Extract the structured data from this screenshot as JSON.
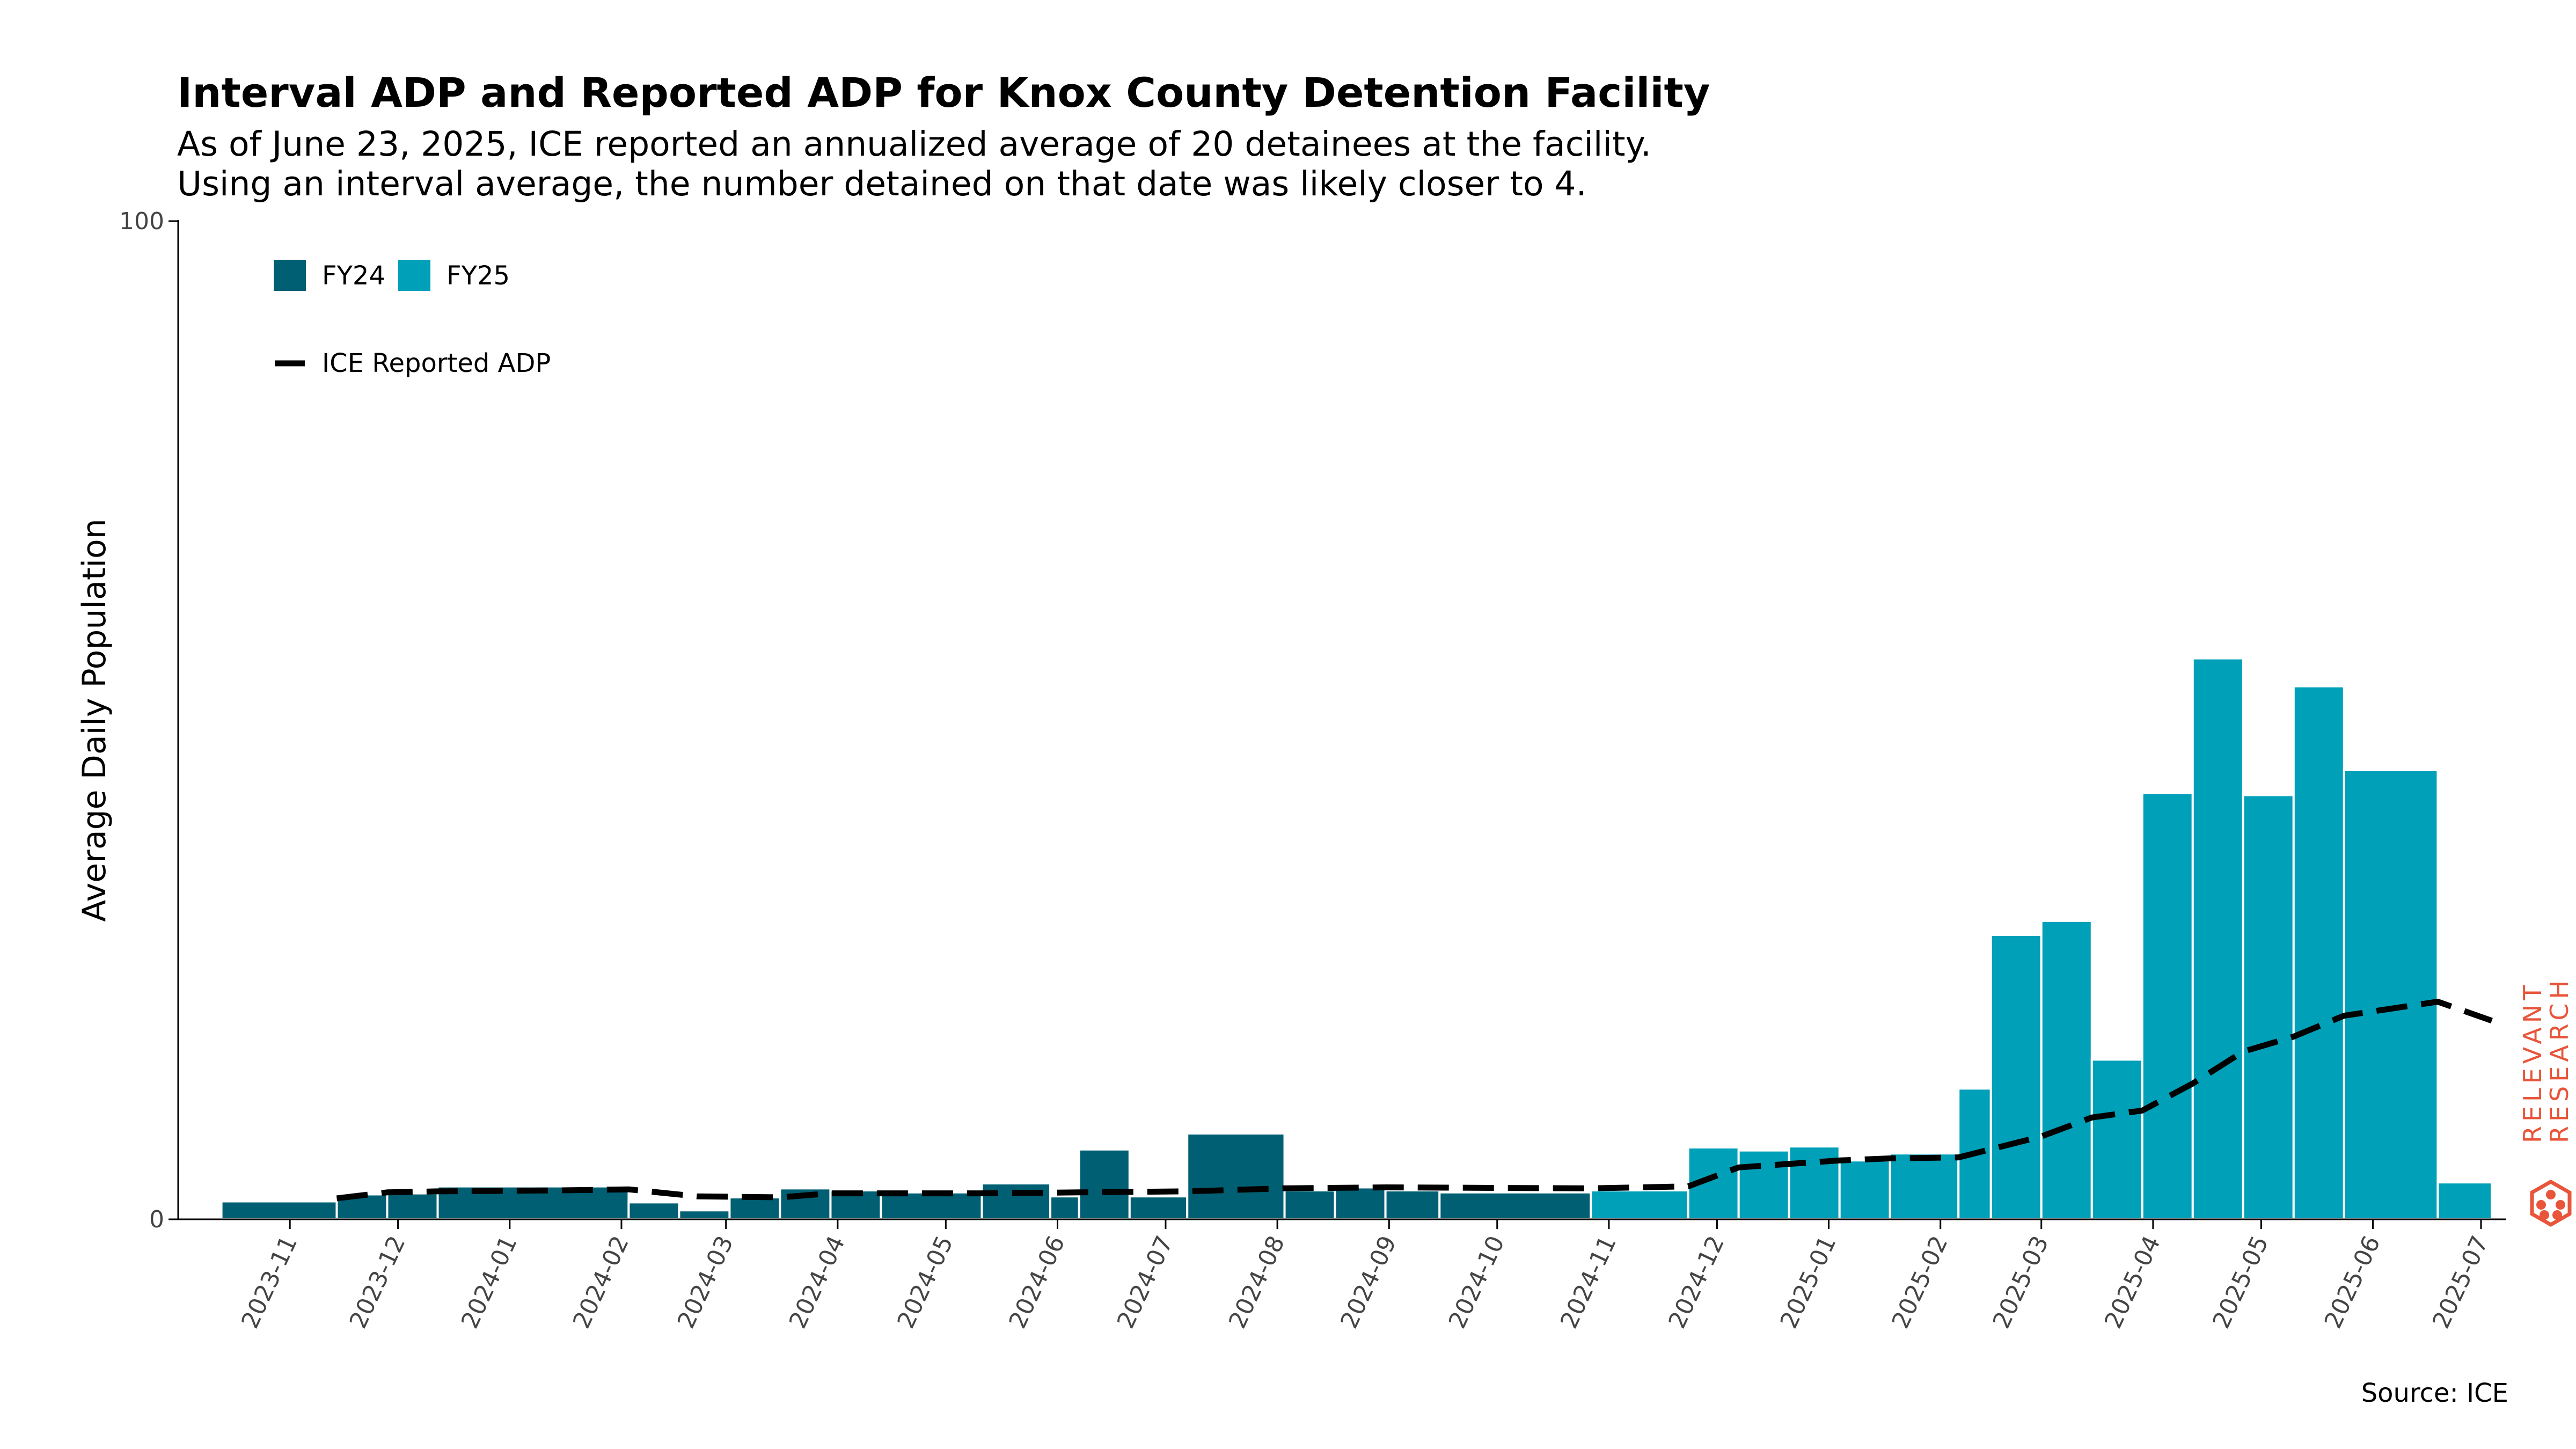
{
  "chart_data": {
    "type": "bar",
    "title": "Interval ADP and Reported ADP for Knox County Detention Facility",
    "subtitle": [
      "As of June 23, 2025, ICE reported an annualized average of 20 detainees at the facility.",
      "Using an interval average, the number detained on that date was likely closer to 4."
    ],
    "ylabel": "Average Daily Population",
    "xlabel": "",
    "ylim": [
      0,
      100
    ],
    "y_ticks": [
      "0",
      "100"
    ],
    "x_ticks": [
      "2023-11",
      "2023-12",
      "2024-01",
      "2024-02",
      "2024-03",
      "2024-04",
      "2024-05",
      "2024-06",
      "2024-07",
      "2024-08",
      "2024-09",
      "2024-10",
      "2024-11",
      "2024-12",
      "2025-01",
      "2025-02",
      "2025-03",
      "2025-04",
      "2025-05",
      "2025-06",
      "2025-07"
    ],
    "x_range": [
      "2023-10-01",
      "2025-07-08"
    ],
    "series": [
      {
        "name": "FY24",
        "color": "#005f73",
        "bars": [
          {
            "start": "2023-10-13",
            "end": "2023-11-14",
            "value": 1.8
          },
          {
            "start": "2023-11-14",
            "end": "2023-11-28",
            "value": 2.5
          },
          {
            "start": "2023-11-28",
            "end": "2023-12-12",
            "value": 2.6
          },
          {
            "start": "2023-12-12",
            "end": "2024-02-03",
            "value": 3.3
          },
          {
            "start": "2024-02-03",
            "end": "2024-02-17",
            "value": 1.7
          },
          {
            "start": "2024-02-17",
            "end": "2024-03-02",
            "value": 0.9
          },
          {
            "start": "2024-03-02",
            "end": "2024-03-16",
            "value": 2.2
          },
          {
            "start": "2024-03-16",
            "end": "2024-03-30",
            "value": 3.1
          },
          {
            "start": "2024-03-30",
            "end": "2024-04-13",
            "value": 2.9
          },
          {
            "start": "2024-04-13",
            "end": "2024-05-11",
            "value": 2.7
          },
          {
            "start": "2024-05-11",
            "end": "2024-05-30",
            "value": 3.6
          },
          {
            "start": "2024-05-30",
            "end": "2024-06-07",
            "value": 2.3
          },
          {
            "start": "2024-06-07",
            "end": "2024-06-21",
            "value": 7.0
          },
          {
            "start": "2024-06-21",
            "end": "2024-07-07",
            "value": 2.3
          },
          {
            "start": "2024-07-07",
            "end": "2024-08-03",
            "value": 8.6
          },
          {
            "start": "2024-08-03",
            "end": "2024-08-17",
            "value": 2.9
          },
          {
            "start": "2024-08-17",
            "end": "2024-08-31",
            "value": 3.2
          },
          {
            "start": "2024-08-31",
            "end": "2024-09-15",
            "value": 2.9
          },
          {
            "start": "2024-09-15",
            "end": "2024-10-27",
            "value": 2.7
          }
        ]
      },
      {
        "name": "FY25",
        "color": "#00a0b8",
        "bars": [
          {
            "start": "2024-10-27",
            "end": "2024-11-23",
            "value": 2.9
          },
          {
            "start": "2024-11-23",
            "end": "2024-12-07",
            "value": 7.2
          },
          {
            "start": "2024-12-07",
            "end": "2024-12-21",
            "value": 6.9
          },
          {
            "start": "2024-12-21",
            "end": "2025-01-04",
            "value": 7.3
          },
          {
            "start": "2025-01-04",
            "end": "2025-01-18",
            "value": 5.9
          },
          {
            "start": "2025-01-18",
            "end": "2025-02-06",
            "value": 6.6
          },
          {
            "start": "2025-02-06",
            "end": "2025-02-15",
            "value": 13.1
          },
          {
            "start": "2025-02-15",
            "end": "2025-03-01",
            "value": 28.5
          },
          {
            "start": "2025-03-01",
            "end": "2025-03-15",
            "value": 29.9
          },
          {
            "start": "2025-03-15",
            "end": "2025-03-29",
            "value": 16.0
          },
          {
            "start": "2025-03-29",
            "end": "2025-04-12",
            "value": 42.7
          },
          {
            "start": "2025-04-12",
            "end": "2025-04-26",
            "value": 56.2
          },
          {
            "start": "2025-04-26",
            "end": "2025-05-10",
            "value": 42.5
          },
          {
            "start": "2025-05-10",
            "end": "2025-05-24",
            "value": 53.4
          },
          {
            "start": "2025-05-24",
            "end": "2025-06-19",
            "value": 45.0
          },
          {
            "start": "2025-06-19",
            "end": "2025-07-04",
            "value": 3.7
          }
        ]
      }
    ],
    "line": {
      "name": "ICE Reported ADP",
      "color": "#000000",
      "style": "dashed",
      "points": [
        {
          "date": "2023-11-14",
          "value": 2.1
        },
        {
          "date": "2023-11-28",
          "value": 2.7
        },
        {
          "date": "2023-12-12",
          "value": 2.8
        },
        {
          "date": "2024-01-15",
          "value": 2.9
        },
        {
          "date": "2024-02-03",
          "value": 3.0
        },
        {
          "date": "2024-02-22",
          "value": 2.3
        },
        {
          "date": "2024-03-16",
          "value": 2.2
        },
        {
          "date": "2024-03-30",
          "value": 2.6
        },
        {
          "date": "2024-05-11",
          "value": 2.6
        },
        {
          "date": "2024-06-07",
          "value": 2.7
        },
        {
          "date": "2024-07-07",
          "value": 2.8
        },
        {
          "date": "2024-08-03",
          "value": 3.1
        },
        {
          "date": "2024-08-31",
          "value": 3.2
        },
        {
          "date": "2024-10-27",
          "value": 3.1
        },
        {
          "date": "2024-11-23",
          "value": 3.3
        },
        {
          "date": "2024-12-07",
          "value": 5.2
        },
        {
          "date": "2025-01-04",
          "value": 5.9
        },
        {
          "date": "2025-01-18",
          "value": 6.1
        },
        {
          "date": "2025-02-06",
          "value": 6.2
        },
        {
          "date": "2025-03-01",
          "value": 8.3
        },
        {
          "date": "2025-03-15",
          "value": 10.2
        },
        {
          "date": "2025-03-29",
          "value": 10.9
        },
        {
          "date": "2025-04-12",
          "value": 13.6
        },
        {
          "date": "2025-04-26",
          "value": 16.8
        },
        {
          "date": "2025-05-10",
          "value": 18.3
        },
        {
          "date": "2025-05-24",
          "value": 20.4
        },
        {
          "date": "2025-06-19",
          "value": 21.8
        },
        {
          "date": "2025-07-04",
          "value": 19.9
        }
      ]
    },
    "legend": {
      "location": "top-left",
      "entries": [
        "FY24",
        "FY25",
        "ICE Reported ADP"
      ]
    },
    "grid": false
  },
  "source": "Source: ICE",
  "logo": {
    "line1": "RELEVANT",
    "line2": "RESEARCH",
    "color": "#e8553a"
  }
}
